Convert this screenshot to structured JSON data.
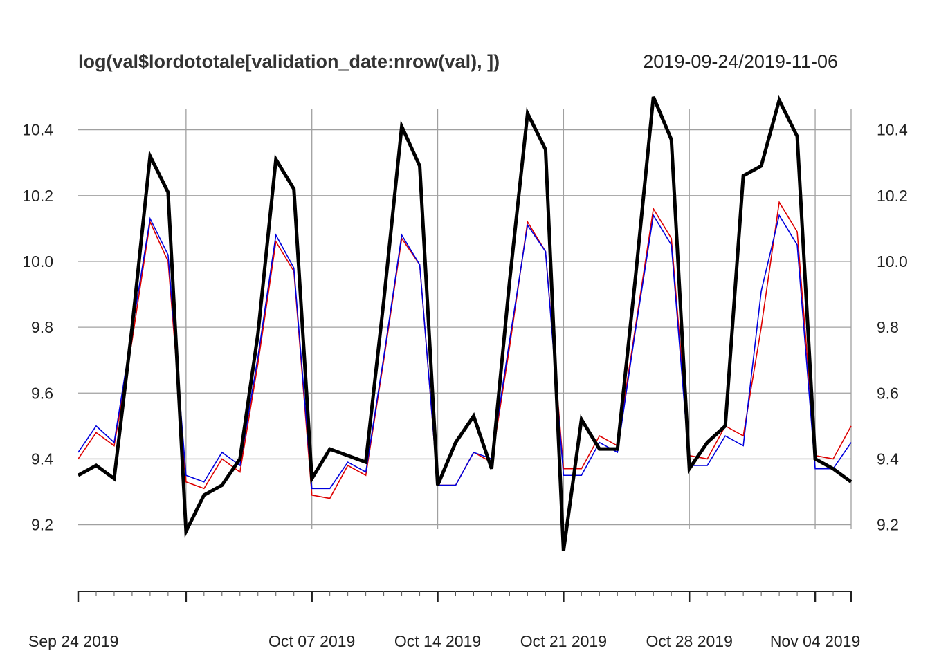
{
  "chart_data": {
    "type": "line",
    "title": "log(val$lordototale[validation_date:nrow(val), ])",
    "subtitle": "2019-09-24/2019-11-06",
    "xlabel": "",
    "ylabel": "",
    "x_range": [
      "2019-09-24",
      "2019-11-06"
    ],
    "ylim": [
      9.05,
      10.5
    ],
    "y_ticks": [
      9.2,
      9.4,
      9.6,
      9.8,
      10.0,
      10.2,
      10.4
    ],
    "y_tick_labels": [
      "9.2",
      "9.4",
      "9.6",
      "9.8",
      "10.0",
      "10.2",
      "10.4"
    ],
    "x_ticks": [
      {
        "date": "2019-09-24",
        "label": "Sep 24 2019"
      },
      {
        "date": "2019-09-30",
        "label": ""
      },
      {
        "date": "2019-10-07",
        "label": "Oct 07 2019"
      },
      {
        "date": "2019-10-14",
        "label": "Oct 14 2019"
      },
      {
        "date": "2019-10-21",
        "label": "Oct 21 2019"
      },
      {
        "date": "2019-10-28",
        "label": "Oct 28 2019"
      },
      {
        "date": "2019-11-04",
        "label": "Nov 04 2019"
      }
    ],
    "x_grid_dates": [
      "2019-09-30",
      "2019-10-07",
      "2019-10-14",
      "2019-10-21",
      "2019-10-28",
      "2019-11-04",
      "2019-11-06"
    ],
    "grid": true,
    "legend": "none",
    "x": [
      "2019-09-24",
      "2019-09-25",
      "2019-09-26",
      "2019-09-27",
      "2019-09-28",
      "2019-09-29",
      "2019-09-30",
      "2019-10-01",
      "2019-10-02",
      "2019-10-03",
      "2019-10-04",
      "2019-10-05",
      "2019-10-06",
      "2019-10-07",
      "2019-10-08",
      "2019-10-09",
      "2019-10-10",
      "2019-10-11",
      "2019-10-12",
      "2019-10-13",
      "2019-10-14",
      "2019-10-15",
      "2019-10-16",
      "2019-10-17",
      "2019-10-18",
      "2019-10-19",
      "2019-10-20",
      "2019-10-21",
      "2019-10-22",
      "2019-10-23",
      "2019-10-24",
      "2019-10-25",
      "2019-10-26",
      "2019-10-27",
      "2019-10-28",
      "2019-10-29",
      "2019-10-30",
      "2019-10-31",
      "2019-11-01",
      "2019-11-02",
      "2019-11-03",
      "2019-11-04",
      "2019-11-05",
      "2019-11-06"
    ],
    "series": [
      {
        "color": "#000000",
        "width": 5,
        "values": [
          9.35,
          9.38,
          9.34,
          9.8,
          10.32,
          10.21,
          9.18,
          9.29,
          9.32,
          9.4,
          9.78,
          10.31,
          10.22,
          9.34,
          9.43,
          9.41,
          9.39,
          9.88,
          10.41,
          10.29,
          9.32,
          9.45,
          9.53,
          9.37,
          9.94,
          10.45,
          10.34,
          9.12,
          9.52,
          9.43,
          9.43,
          9.95,
          10.5,
          10.37,
          9.37,
          9.45,
          9.5,
          10.26,
          10.29,
          10.49,
          10.38,
          9.4,
          9.37,
          9.33
        ]
      },
      {
        "color": "#dd0000",
        "width": 1.6,
        "values": [
          9.4,
          9.48,
          9.44,
          9.76,
          10.12,
          10.0,
          9.33,
          9.31,
          9.4,
          9.36,
          9.69,
          10.06,
          9.97,
          9.29,
          9.28,
          9.38,
          9.35,
          9.7,
          10.07,
          9.99,
          9.32,
          9.32,
          9.42,
          9.39,
          9.74,
          10.12,
          10.03,
          9.37,
          9.37,
          9.47,
          9.44,
          9.8,
          10.16,
          10.07,
          9.41,
          9.4,
          9.5,
          9.47,
          9.8,
          10.18,
          10.09,
          9.41,
          9.4,
          9.5
        ]
      },
      {
        "color": "#0000dd",
        "width": 1.6,
        "values": [
          9.42,
          9.5,
          9.45,
          9.79,
          10.13,
          10.02,
          9.35,
          9.33,
          9.42,
          9.38,
          9.71,
          10.08,
          9.98,
          9.31,
          9.31,
          9.39,
          9.36,
          9.71,
          10.08,
          9.99,
          9.32,
          9.32,
          9.42,
          9.4,
          9.76,
          10.11,
          10.03,
          9.35,
          9.35,
          9.45,
          9.42,
          9.79,
          10.14,
          10.05,
          9.38,
          9.38,
          9.47,
          9.44,
          9.91,
          10.14,
          10.05,
          9.37,
          9.37,
          9.45
        ]
      }
    ]
  }
}
